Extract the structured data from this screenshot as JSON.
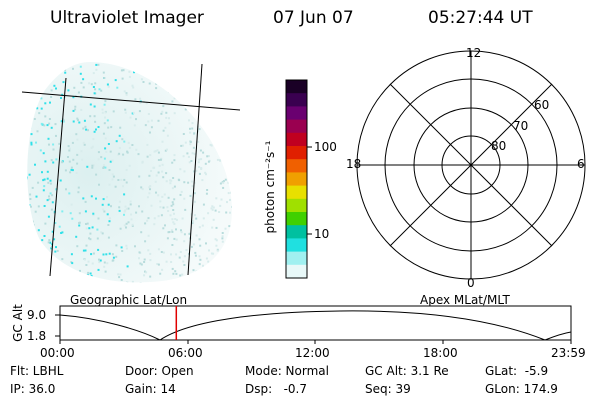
{
  "header": {
    "title": "Ultraviolet Imager",
    "date": "07 Jun 07",
    "time": "05:27:44 UT"
  },
  "geo_panel": {
    "label": "Geographic Lat/Lon"
  },
  "colorbar": {
    "unit_label": "photon cm⁻²s⁻¹",
    "ticks": [
      {
        "value": 100,
        "label": "100"
      },
      {
        "value": 10,
        "label": "10"
      }
    ],
    "colors": [
      "#1a0026",
      "#3a0050",
      "#6a0070",
      "#9a0050",
      "#c00020",
      "#e02000",
      "#f06000",
      "#f0a000",
      "#e8e000",
      "#a0e000",
      "#40d000",
      "#00c0a0",
      "#20e0e0",
      "#a0f0f0",
      "#e8f8f8"
    ]
  },
  "polar_panel": {
    "label": "Apex MLat/MLT",
    "mlt_labels": {
      "top": "12",
      "left": "18",
      "right": "6",
      "bottom": "0"
    },
    "lat_labels": [
      "60",
      "70",
      "80"
    ]
  },
  "altitude_plot": {
    "ylabel": "GC Alt",
    "y_ticks": [
      "9.0",
      "1.8"
    ],
    "x_ticks": [
      "00:00",
      "06:00",
      "12:00",
      "18:00",
      "23:59"
    ],
    "marker_time_hours": 5.46
  },
  "status": {
    "flt": "Flt: LBHL",
    "door": "Door: Open",
    "mode": "Mode: Normal",
    "gc_alt": "GC Alt: 3.1 Re",
    "glat": "GLat:  -5.9",
    "ip": "IP: 36.0",
    "gain": "Gain: 14",
    "dsp": "Dsp:   -0.7",
    "seq": "Seq: 39",
    "glon": "GLon: 174.9"
  }
}
